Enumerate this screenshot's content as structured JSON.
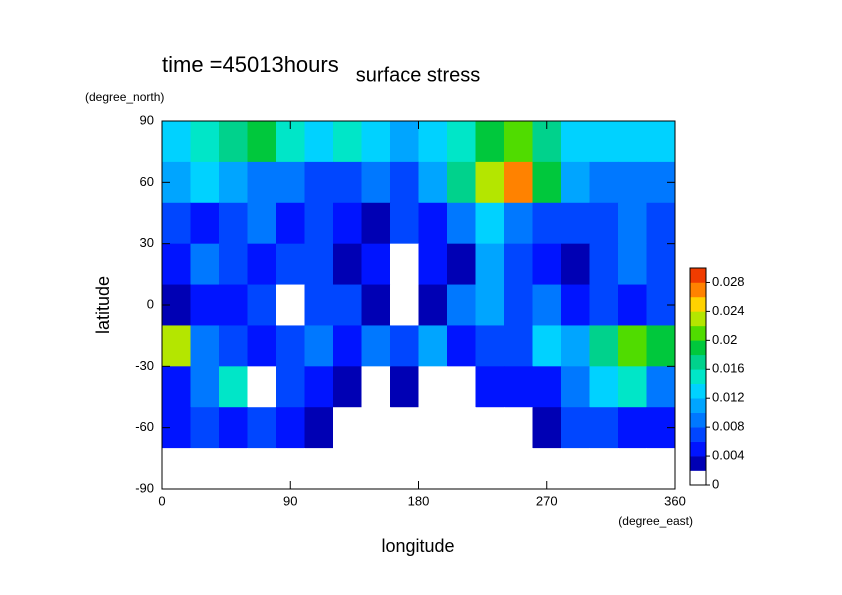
{
  "chart_data": {
    "type": "contour",
    "title": "surface stress",
    "annotation": "time =45013hours",
    "x_label": "longitude",
    "x_unit": "(degree_east)",
    "y_label": "latitude",
    "y_unit": "(degree_north)",
    "xlim": [
      0,
      360
    ],
    "xticks": [
      0,
      90,
      180,
      270,
      360
    ],
    "ylim": [
      -90,
      90
    ],
    "yticks": [
      -90,
      -60,
      -30,
      0,
      30,
      60,
      90
    ],
    "colorbar_lim": [
      0,
      0.03
    ],
    "colorbar_ticks": [
      0,
      0.004,
      0.008,
      0.012,
      0.016,
      0.02,
      0.024,
      0.028
    ],
    "levels": [
      0,
      0.002,
      0.004,
      0.006,
      0.008,
      0.01,
      0.012,
      0.014,
      0.016,
      0.018,
      0.02,
      0.022,
      0.024,
      0.026,
      0.028,
      0.03
    ],
    "colors": [
      "#ffffff",
      "#0000b4",
      "#0014ff",
      "#0046ff",
      "#0078ff",
      "#00a5ff",
      "#00d2ff",
      "#00e6c8",
      "#00d28c",
      "#00c83c",
      "#50dc00",
      "#b4e600",
      "#ffd200",
      "#ff8200",
      "#f03c00"
    ],
    "x": [
      10,
      30,
      50,
      70,
      90,
      110,
      130,
      150,
      170,
      190,
      210,
      230,
      250,
      270,
      290,
      310,
      330,
      350
    ],
    "y": [
      80,
      60,
      40,
      20,
      0,
      -20,
      -40,
      -60,
      -80
    ],
    "z": [
      [
        0.012,
        0.014,
        0.016,
        0.018,
        0.014,
        0.012,
        0.014,
        0.012,
        0.01,
        0.012,
        0.014,
        0.018,
        0.02,
        0.016,
        0.012,
        0.012,
        0.012,
        0.012
      ],
      [
        0.01,
        0.012,
        0.01,
        0.008,
        0.008,
        0.006,
        0.006,
        0.008,
        0.006,
        0.01,
        0.016,
        0.022,
        0.026,
        0.018,
        0.01,
        0.008,
        0.008,
        0.008
      ],
      [
        0.006,
        0.004,
        0.006,
        0.008,
        0.004,
        0.006,
        0.004,
        0.002,
        0.006,
        0.004,
        0.008,
        0.012,
        0.008,
        0.006,
        0.006,
        0.006,
        0.008,
        0.006
      ],
      [
        0.004,
        0.008,
        0.006,
        0.004,
        0.006,
        0.006,
        0.002,
        0.004,
        0.0,
        0.004,
        0.002,
        0.01,
        0.006,
        0.004,
        0.002,
        0.006,
        0.008,
        0.006
      ],
      [
        0.002,
        0.004,
        0.004,
        0.006,
        0.0,
        0.006,
        0.006,
        0.002,
        0.0,
        0.002,
        0.008,
        0.01,
        0.006,
        0.008,
        0.004,
        0.006,
        0.004,
        0.006
      ],
      [
        0.022,
        0.008,
        0.006,
        0.004,
        0.006,
        0.008,
        0.004,
        0.008,
        0.006,
        0.01,
        0.004,
        0.006,
        0.006,
        0.012,
        0.01,
        0.016,
        0.02,
        0.018
      ],
      [
        0.004,
        0.008,
        0.014,
        0.0,
        0.006,
        0.004,
        0.002,
        0.0,
        0.002,
        0.0,
        0.0,
        0.004,
        0.004,
        0.004,
        0.008,
        0.012,
        0.014,
        0.008
      ],
      [
        0.004,
        0.006,
        0.004,
        0.006,
        0.004,
        0.002,
        0.0,
        0.0,
        0.0,
        0.0,
        0.0,
        0.0,
        0.0,
        0.002,
        0.006,
        0.006,
        0.004,
        0.004
      ],
      [
        0,
        0,
        0,
        0,
        0,
        0,
        0,
        0,
        0,
        0,
        0,
        0,
        0,
        0,
        0,
        0,
        0,
        0
      ]
    ]
  }
}
